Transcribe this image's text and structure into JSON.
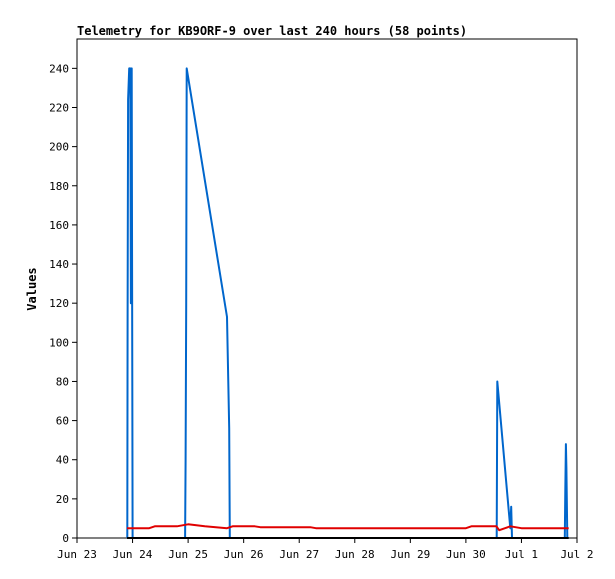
{
  "chart_data": {
    "type": "line",
    "title": "Telemetry for KB9ORF-9 over last 240 hours (58 points)",
    "ylabel": "Values",
    "xlabel": "",
    "ylim": [
      0,
      255
    ],
    "xlim": [
      "Jun 23",
      "Jul 2"
    ],
    "yticks": [
      0,
      20,
      40,
      60,
      80,
      100,
      120,
      140,
      160,
      180,
      200,
      220,
      240
    ],
    "xticks": [
      "Jun 23",
      "Jun 24",
      "Jun 25",
      "Jun 26",
      "Jun 27",
      "Jun 28",
      "Jun 29",
      "Jun 30",
      "Jul 1",
      "Jul 2"
    ],
    "grid": false,
    "legend": "none",
    "series": [
      {
        "color": "#0066cc",
        "points": [
          [
            0.905,
            0
          ],
          [
            0.91,
            112
          ],
          [
            0.92,
            224
          ],
          [
            0.94,
            240
          ],
          [
            0.96,
            240
          ],
          [
            0.97,
            120
          ],
          [
            0.985,
            240
          ],
          [
            1.0,
            0
          ],
          [
            1.945,
            0
          ],
          [
            1.955,
            40
          ],
          [
            1.965,
            120
          ],
          [
            1.975,
            240
          ],
          [
            2.7,
            113
          ],
          [
            2.74,
            56
          ],
          [
            2.75,
            0
          ],
          [
            7.555,
            0
          ],
          [
            7.565,
            80
          ],
          [
            7.8,
            5
          ],
          [
            7.815,
            16
          ],
          [
            7.83,
            0
          ],
          [
            8.78,
            0
          ],
          [
            8.79,
            24
          ],
          [
            8.8,
            48
          ],
          [
            8.81,
            36
          ],
          [
            8.82,
            12
          ],
          [
            8.825,
            0
          ]
        ]
      },
      {
        "color": "#e00000",
        "points": [
          [
            0.9,
            5
          ],
          [
            1.3,
            5
          ],
          [
            1.4,
            6
          ],
          [
            1.8,
            6
          ],
          [
            2.0,
            7
          ],
          [
            2.3,
            6
          ],
          [
            2.7,
            5
          ],
          [
            2.8,
            6
          ],
          [
            3.2,
            6
          ],
          [
            3.3,
            5.5
          ],
          [
            4.2,
            5.5
          ],
          [
            4.3,
            5
          ],
          [
            7.0,
            5
          ],
          [
            7.1,
            6
          ],
          [
            7.55,
            6
          ],
          [
            7.6,
            4
          ],
          [
            7.8,
            6
          ],
          [
            8.0,
            5
          ],
          [
            8.85,
            5
          ]
        ]
      },
      {
        "color": "#000000",
        "points": [
          [
            0.9,
            0
          ],
          [
            8.85,
            0
          ]
        ]
      }
    ]
  }
}
